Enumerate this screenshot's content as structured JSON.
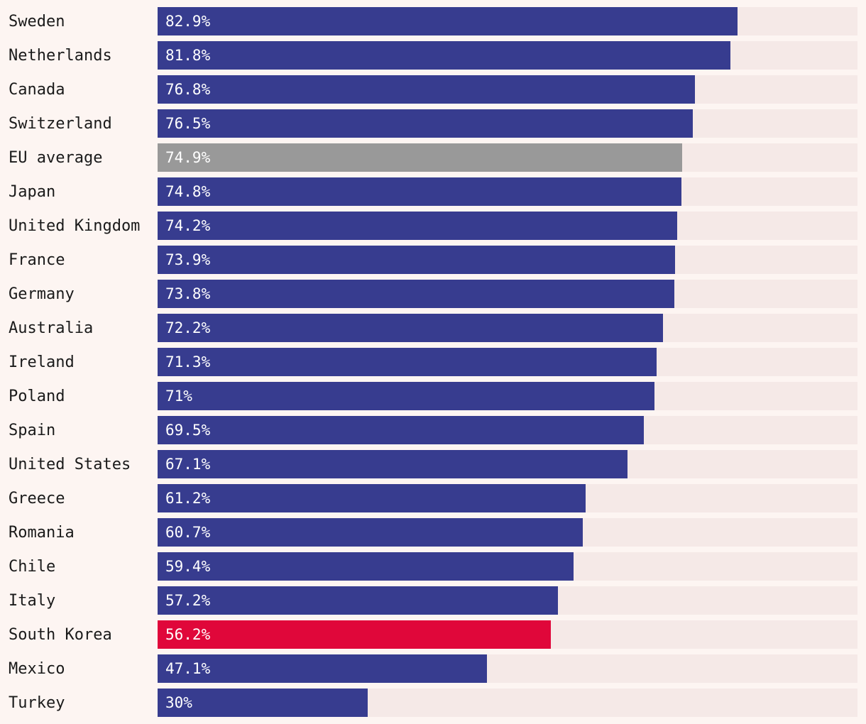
{
  "chart_data": {
    "type": "bar",
    "orientation": "horizontal",
    "xlim": [
      0,
      100
    ],
    "value_suffix": "%",
    "colors": {
      "background": "#fdf5f2",
      "track": "#f5e9e7",
      "default": "#373c8f",
      "average": "#999999",
      "highlight": "#e0073a",
      "value_text": "#ffffff",
      "label_text": "#1a1a1a"
    },
    "categories": [
      "Sweden",
      "Netherlands",
      "Canada",
      "Switzerland",
      "EU average",
      "Japan",
      "United Kingdom",
      "France",
      "Germany",
      "Australia",
      "Ireland",
      "Poland",
      "Spain",
      "United States",
      "Greece",
      "Romania",
      "Chile",
      "Italy",
      "South Korea",
      "Mexico",
      "Turkey"
    ],
    "values": [
      82.9,
      81.8,
      76.8,
      76.5,
      74.9,
      74.8,
      74.2,
      73.9,
      73.8,
      72.2,
      71.3,
      71,
      69.5,
      67.1,
      61.2,
      60.7,
      59.4,
      57.2,
      56.2,
      47.1,
      30
    ],
    "value_labels": [
      "82.9%",
      "81.8%",
      "76.8%",
      "76.5%",
      "74.9%",
      "74.8%",
      "74.2%",
      "73.9%",
      "73.8%",
      "72.2%",
      "71.3%",
      "71%",
      "69.5%",
      "67.1%",
      "61.2%",
      "60.7%",
      "59.4%",
      "57.2%",
      "56.2%",
      "47.1%",
      "30%"
    ],
    "bar_style": [
      "default",
      "default",
      "default",
      "default",
      "average",
      "default",
      "default",
      "default",
      "default",
      "default",
      "default",
      "default",
      "default",
      "default",
      "default",
      "default",
      "default",
      "default",
      "highlight",
      "default",
      "default"
    ]
  }
}
